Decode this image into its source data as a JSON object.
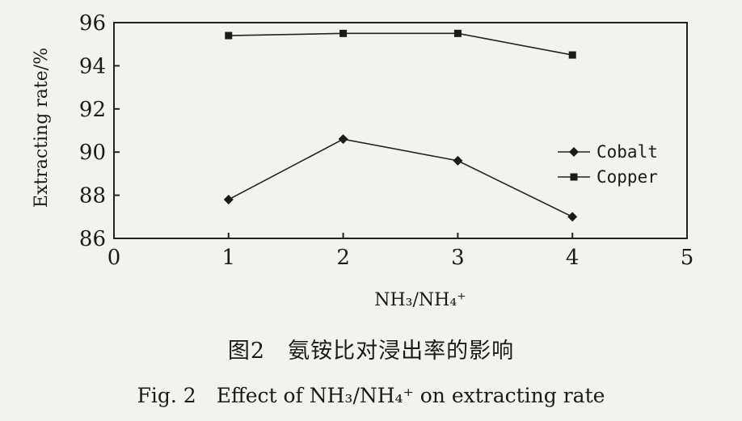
{
  "chart_data": {
    "type": "line",
    "title": "",
    "xlabel": "NH₃/NH₄⁺",
    "ylabel": "Extracting rate/%",
    "xlim": [
      0,
      5
    ],
    "ylim": [
      86,
      96
    ],
    "xticks": [
      "0",
      "1",
      "2",
      "3",
      "4",
      "5"
    ],
    "yticks": [
      "86",
      "88",
      "90",
      "92",
      "94",
      "96"
    ],
    "x": [
      1,
      2,
      3,
      4
    ],
    "series": [
      {
        "name": "Cobalt",
        "marker": "diamond",
        "values": [
          87.8,
          90.6,
          89.6,
          87.0
        ]
      },
      {
        "name": "Copper",
        "marker": "square",
        "values": [
          95.4,
          95.5,
          95.5,
          94.5
        ]
      }
    ],
    "grid": false,
    "legend_position": "right"
  },
  "captions": {
    "cn": "图2　氨铵比对浸出率的影响",
    "en": "Fig. 2　Effect of NH₃/NH₄⁺ on extracting rate"
  }
}
